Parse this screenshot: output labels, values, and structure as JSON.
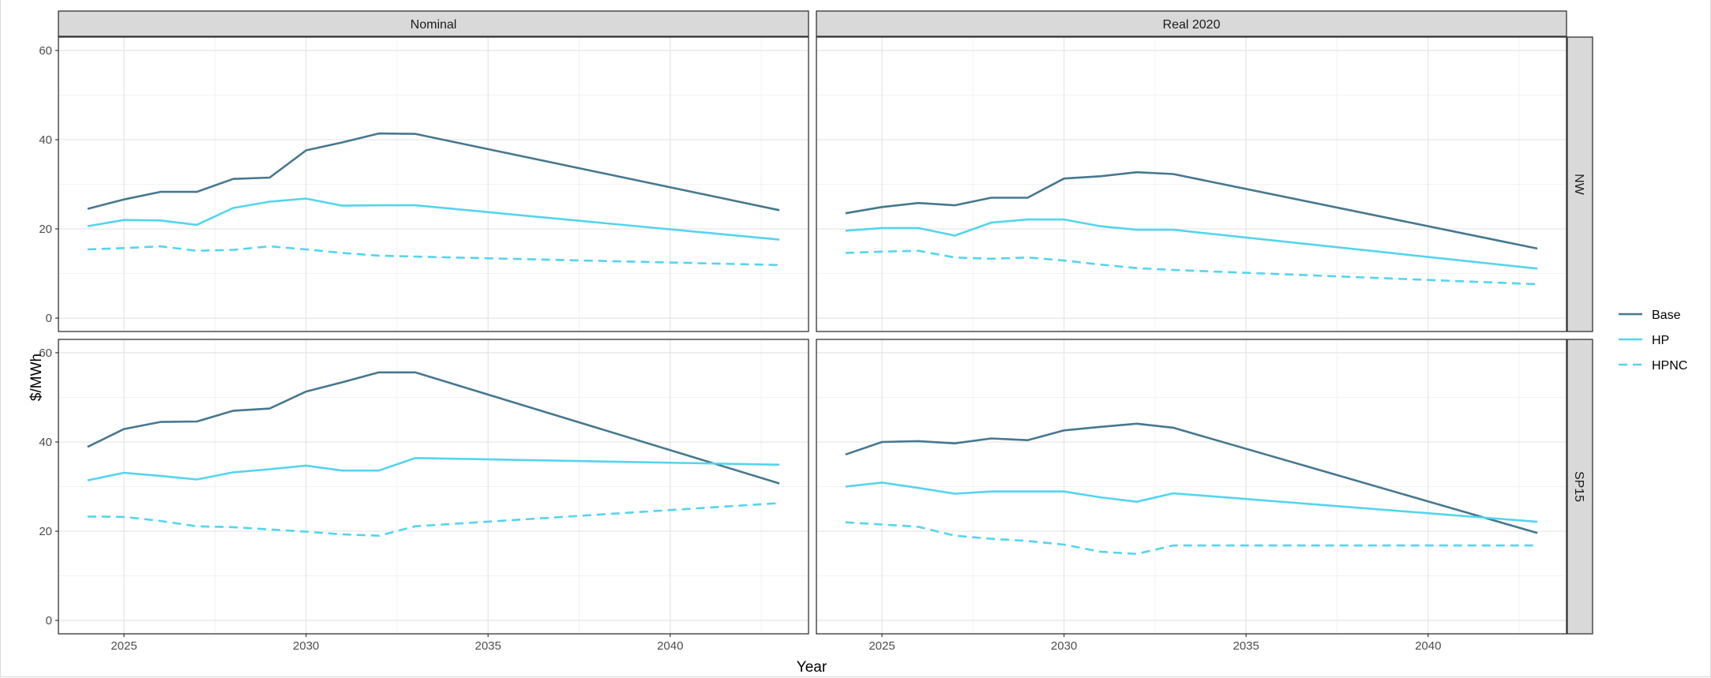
{
  "chart_data": {
    "type": "line",
    "xlabel": "Year",
    "ylabel": "$/MWh",
    "xlim": [
      2023.2,
      2043.8
    ],
    "ylim": [
      -3,
      63
    ],
    "x_ticks": [
      2025,
      2030,
      2035,
      2040
    ],
    "y_ticks": [
      0,
      20,
      40,
      60
    ],
    "column_facets": [
      "Nominal",
      "Real 2020"
    ],
    "row_facets": [
      "NW",
      "SP15"
    ],
    "legend": {
      "position": "right",
      "entries": [
        {
          "name": "Base",
          "color": "#45788f",
          "linetype": "solid"
        },
        {
          "name": "HP",
          "color": "#52d5ef",
          "linetype": "solid"
        },
        {
          "name": "HPNC",
          "color": "#52d5ef",
          "linetype": "dashed"
        }
      ]
    },
    "grid": true,
    "panels": [
      {
        "column": "Nominal",
        "row": "NW",
        "series": [
          {
            "name": "Base",
            "x": [
              2024,
              2025,
              2026,
              2027,
              2028,
              2029,
              2030,
              2031,
              2032,
              2033,
              2043
            ],
            "y": [
              24.5,
              26.6,
              28.3,
              28.3,
              31.2,
              31.5,
              37.6,
              39.4,
              41.4,
              41.3,
              24.2
            ]
          },
          {
            "name": "HP",
            "x": [
              2024,
              2025,
              2026,
              2027,
              2028,
              2029,
              2030,
              2031,
              2032,
              2033,
              2043
            ],
            "y": [
              20.6,
              22.0,
              21.9,
              20.9,
              24.7,
              26.1,
              26.8,
              25.2,
              25.3,
              25.3,
              17.6
            ]
          },
          {
            "name": "HPNC",
            "x": [
              2024,
              2025,
              2026,
              2027,
              2028,
              2029,
              2030,
              2031,
              2032,
              2033,
              2043
            ],
            "y": [
              15.4,
              15.7,
              16.1,
              15.1,
              15.3,
              16.1,
              15.4,
              14.6,
              14.0,
              13.8,
              11.9
            ]
          }
        ]
      },
      {
        "column": "Real 2020",
        "row": "NW",
        "series": [
          {
            "name": "Base",
            "x": [
              2024,
              2025,
              2026,
              2027,
              2028,
              2029,
              2030,
              2031,
              2032,
              2033,
              2043
            ],
            "y": [
              23.5,
              24.9,
              25.8,
              25.3,
              27.0,
              27.0,
              31.3,
              31.8,
              32.7,
              32.3,
              15.6
            ]
          },
          {
            "name": "HP",
            "x": [
              2024,
              2025,
              2026,
              2027,
              2028,
              2029,
              2030,
              2031,
              2032,
              2033,
              2043
            ],
            "y": [
              19.6,
              20.2,
              20.2,
              18.5,
              21.4,
              22.1,
              22.1,
              20.6,
              19.8,
              19.8,
              11.1
            ]
          },
          {
            "name": "HPNC",
            "x": [
              2024,
              2025,
              2026,
              2027,
              2028,
              2029,
              2030,
              2031,
              2032,
              2033,
              2043
            ],
            "y": [
              14.6,
              14.9,
              15.1,
              13.6,
              13.3,
              13.6,
              12.9,
              12.0,
              11.2,
              10.8,
              7.6
            ]
          }
        ]
      },
      {
        "column": "Nominal",
        "row": "SP15",
        "series": [
          {
            "name": "Base",
            "x": [
              2024,
              2025,
              2026,
              2027,
              2028,
              2029,
              2030,
              2031,
              2032,
              2033,
              2043
            ],
            "y": [
              38.9,
              42.9,
              44.5,
              44.6,
              47.0,
              47.5,
              51.3,
              53.4,
              55.6,
              55.6,
              30.7
            ]
          },
          {
            "name": "HP",
            "x": [
              2024,
              2025,
              2026,
              2027,
              2028,
              2029,
              2030,
              2031,
              2032,
              2033,
              2043
            ],
            "y": [
              31.4,
              33.1,
              32.4,
              31.6,
              33.2,
              33.9,
              34.7,
              33.6,
              33.6,
              36.4,
              34.9
            ]
          },
          {
            "name": "HPNC",
            "x": [
              2024,
              2025,
              2026,
              2027,
              2028,
              2029,
              2030,
              2031,
              2032,
              2033,
              2043
            ],
            "y": [
              23.3,
              23.2,
              22.3,
              21.1,
              20.9,
              20.4,
              19.9,
              19.3,
              19.0,
              21.1,
              26.3
            ]
          }
        ]
      },
      {
        "column": "Real 2020",
        "row": "SP15",
        "series": [
          {
            "name": "Base",
            "x": [
              2024,
              2025,
              2026,
              2027,
              2028,
              2029,
              2030,
              2031,
              2032,
              2033,
              2043
            ],
            "y": [
              37.2,
              40.0,
              40.2,
              39.7,
              40.8,
              40.4,
              42.6,
              43.4,
              44.1,
              43.2,
              19.6
            ]
          },
          {
            "name": "HP",
            "x": [
              2024,
              2025,
              2026,
              2027,
              2028,
              2029,
              2030,
              2031,
              2032,
              2033,
              2043
            ],
            "y": [
              30.0,
              30.9,
              29.7,
              28.4,
              28.9,
              28.9,
              28.9,
              27.6,
              26.6,
              28.5,
              22.1
            ]
          },
          {
            "name": "HPNC",
            "x": [
              2024,
              2025,
              2026,
              2027,
              2028,
              2029,
              2030,
              2031,
              2032,
              2033,
              2043
            ],
            "y": [
              22.0,
              21.5,
              21.0,
              19.0,
              18.3,
              17.8,
              17.0,
              15.4,
              14.9,
              16.8,
              16.8
            ]
          }
        ]
      }
    ]
  }
}
